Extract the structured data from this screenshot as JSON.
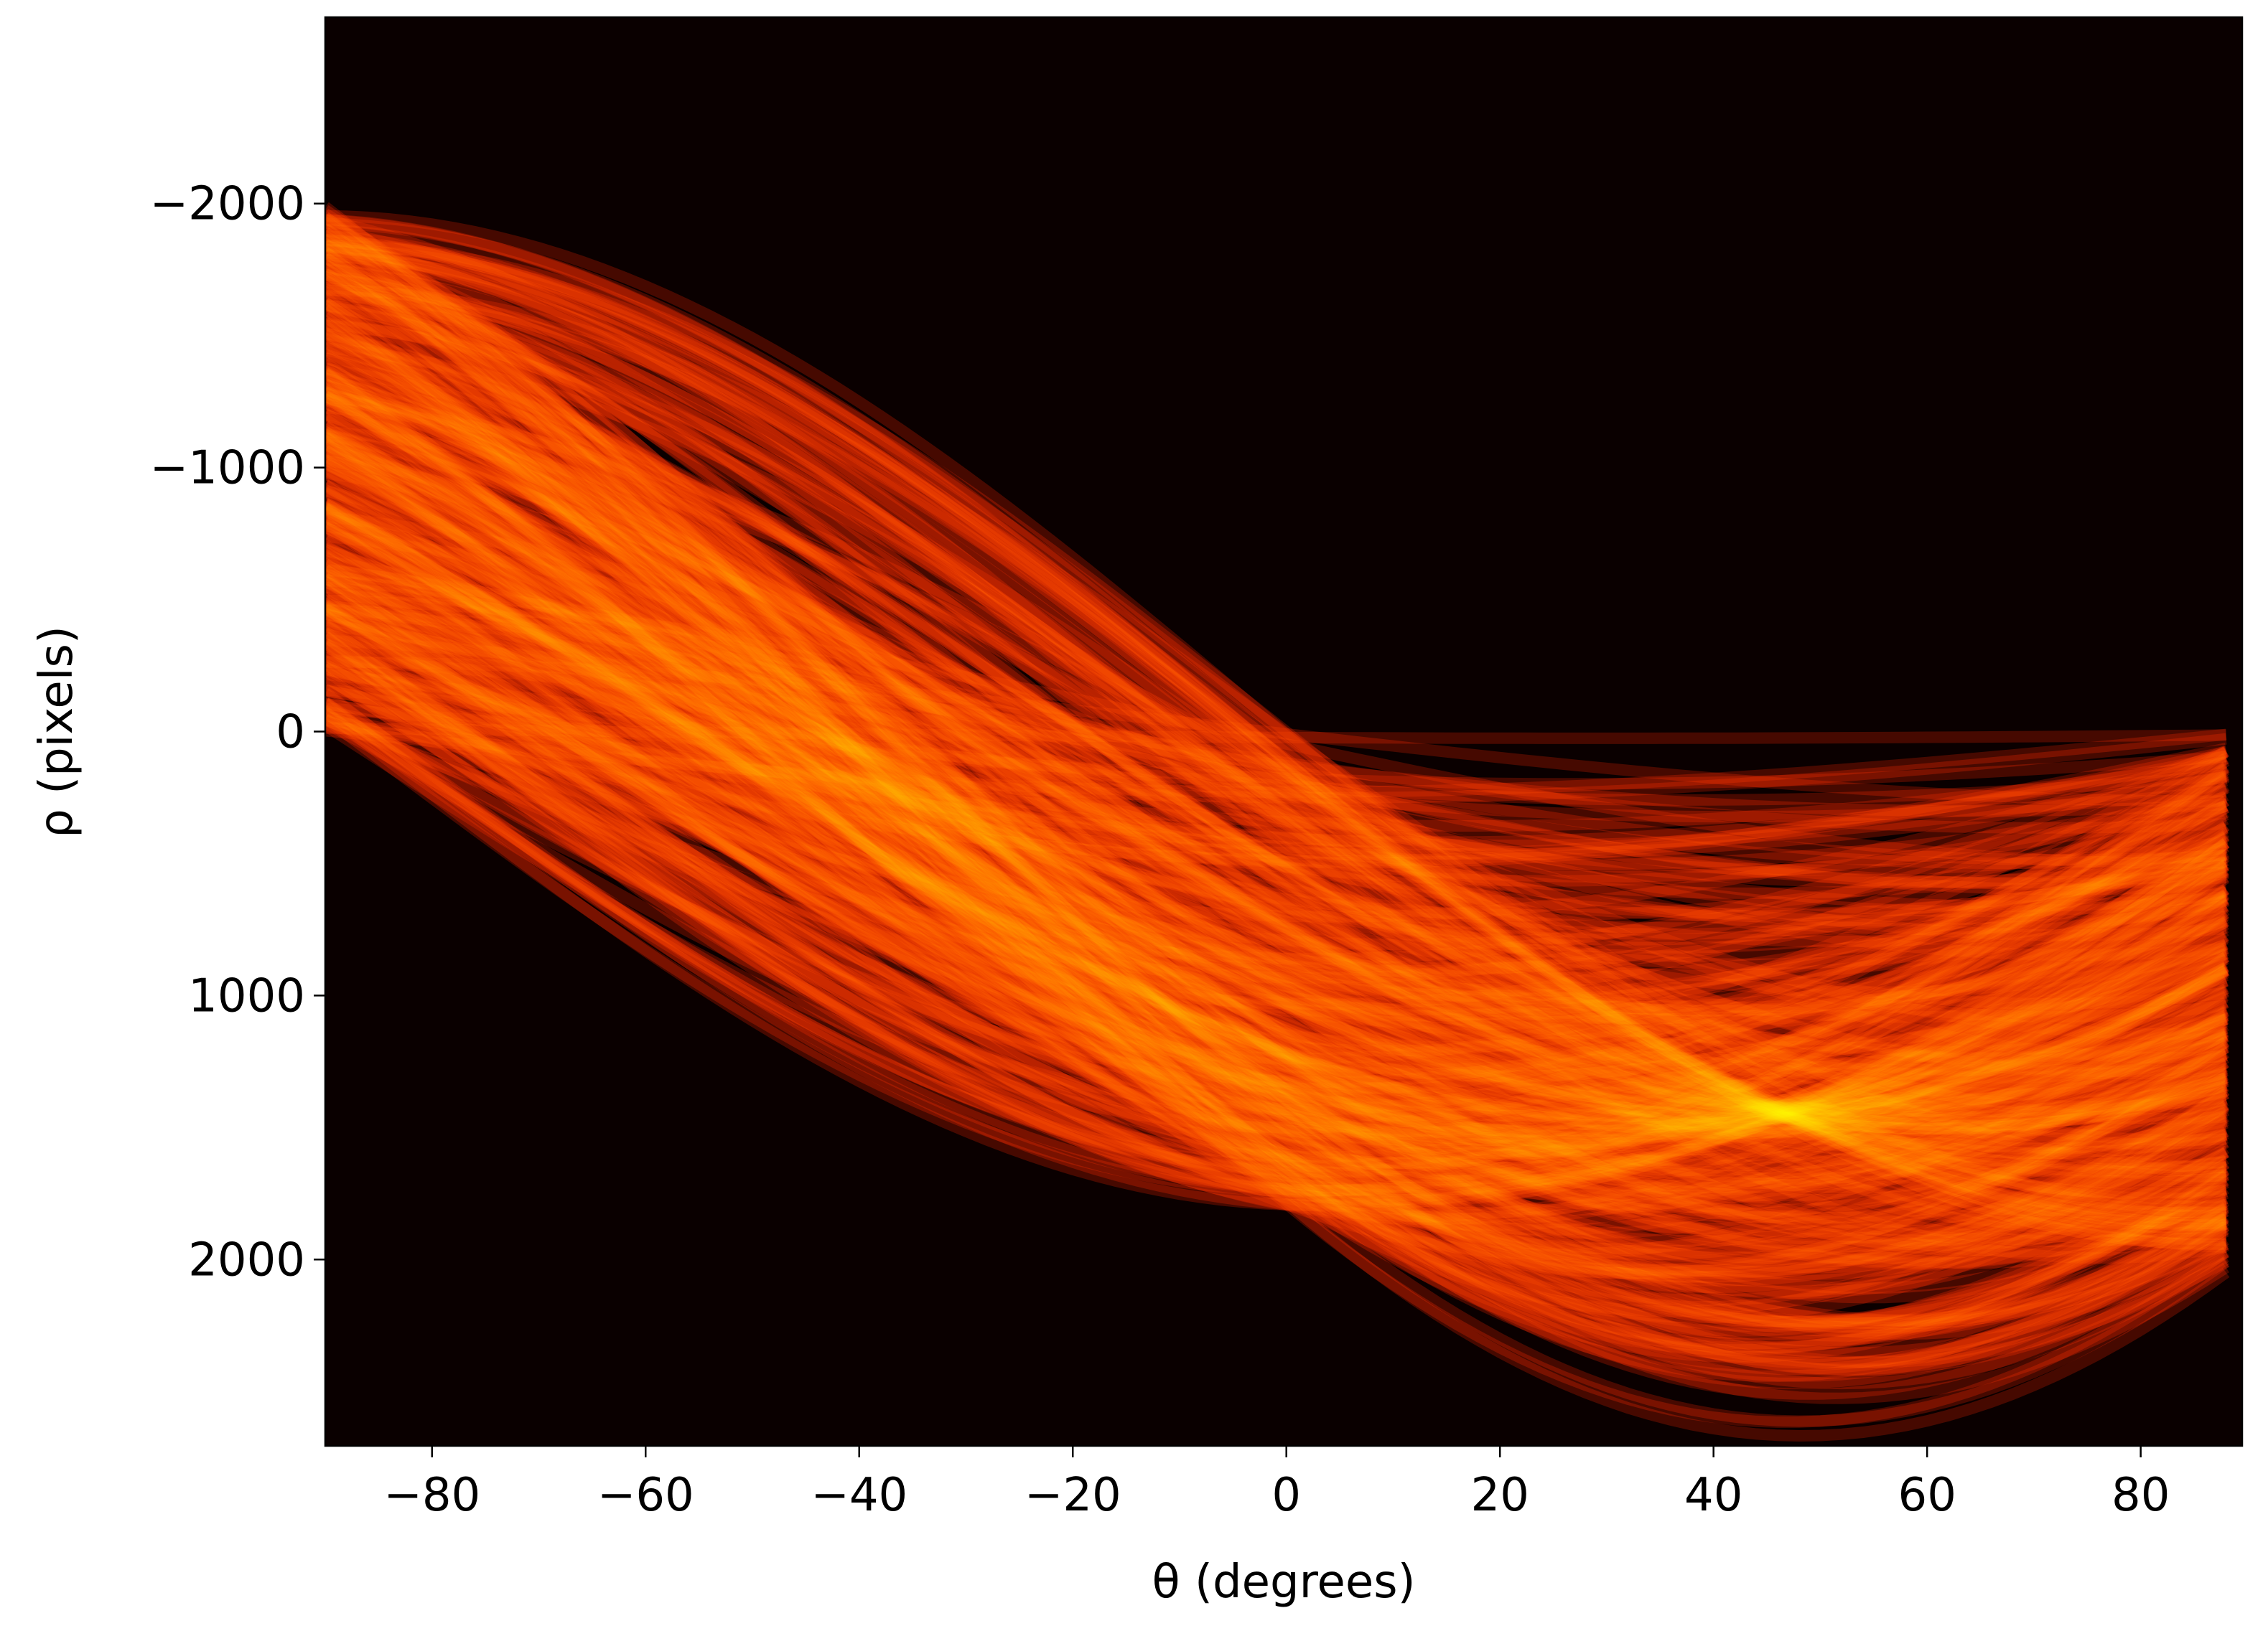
{
  "chart_data": {
    "type": "heatmap",
    "x_label": "θ (degrees)",
    "y_label": "ρ (pixels)",
    "colormap": "hot",
    "xlim": [
      -90,
      89.5
    ],
    "ylim": [
      2706,
      -2706
    ],
    "xticks": [
      {
        "value": -80,
        "label": "−80"
      },
      {
        "value": -60,
        "label": "−60"
      },
      {
        "value": -40,
        "label": "−40"
      },
      {
        "value": -20,
        "label": "−20"
      },
      0,
      20,
      40,
      60,
      80
    ],
    "yticks": [
      {
        "value": -2000,
        "label": "−2000"
      },
      {
        "value": -1000,
        "label": "−1000"
      },
      0,
      1000,
      2000
    ]
  }
}
